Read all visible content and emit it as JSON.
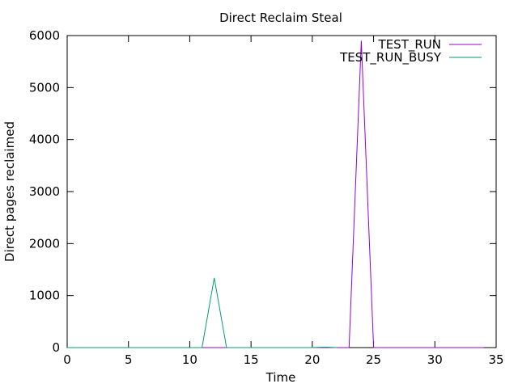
{
  "chart_data": {
    "type": "line",
    "title": "Direct Reclaim Steal",
    "xlabel": "Time",
    "ylabel": "Direct pages reclaimed",
    "xlim": [
      0,
      35
    ],
    "ylim": [
      0,
      6000
    ],
    "xticks": [
      0,
      5,
      10,
      15,
      20,
      25,
      30,
      35
    ],
    "yticks": [
      0,
      1000,
      2000,
      3000,
      4000,
      5000,
      6000
    ],
    "grid": false,
    "legend_position": "top-right",
    "series": [
      {
        "name": "TEST_RUN",
        "color": "#9400d3",
        "points": [
          [
            0,
            0
          ],
          [
            1,
            0
          ],
          [
            2,
            0
          ],
          [
            3,
            0
          ],
          [
            4,
            0
          ],
          [
            5,
            0
          ],
          [
            6,
            0
          ],
          [
            7,
            0
          ],
          [
            8,
            0
          ],
          [
            9,
            0
          ],
          [
            10,
            0
          ],
          [
            11,
            0
          ],
          [
            12,
            0
          ],
          [
            13,
            0
          ],
          [
            14,
            0
          ],
          [
            15,
            0
          ],
          [
            16,
            0
          ],
          [
            17,
            0
          ],
          [
            18,
            0
          ],
          [
            19,
            0
          ],
          [
            20,
            0
          ],
          [
            21,
            0
          ],
          [
            22,
            0
          ],
          [
            23,
            0
          ],
          [
            24,
            5900
          ],
          [
            25,
            0
          ],
          [
            26,
            0
          ],
          [
            27,
            0
          ],
          [
            28,
            0
          ],
          [
            29,
            0
          ],
          [
            30,
            0
          ],
          [
            31,
            0
          ],
          [
            32,
            0
          ],
          [
            33,
            0
          ],
          [
            34,
            0
          ]
        ]
      },
      {
        "name": "TEST_RUN_BUSY",
        "color": "#009e73",
        "points": [
          [
            0,
            0
          ],
          [
            1,
            0
          ],
          [
            2,
            0
          ],
          [
            3,
            0
          ],
          [
            4,
            0
          ],
          [
            5,
            0
          ],
          [
            6,
            0
          ],
          [
            7,
            0
          ],
          [
            8,
            0
          ],
          [
            9,
            0
          ],
          [
            10,
            0
          ],
          [
            11,
            0
          ],
          [
            12,
            1340
          ],
          [
            13,
            0
          ],
          [
            14,
            0
          ],
          [
            15,
            0
          ],
          [
            16,
            0
          ],
          [
            17,
            0
          ],
          [
            18,
            0
          ],
          [
            19,
            0
          ],
          [
            20,
            0
          ],
          [
            21,
            10
          ],
          [
            22,
            0
          ]
        ]
      }
    ]
  }
}
